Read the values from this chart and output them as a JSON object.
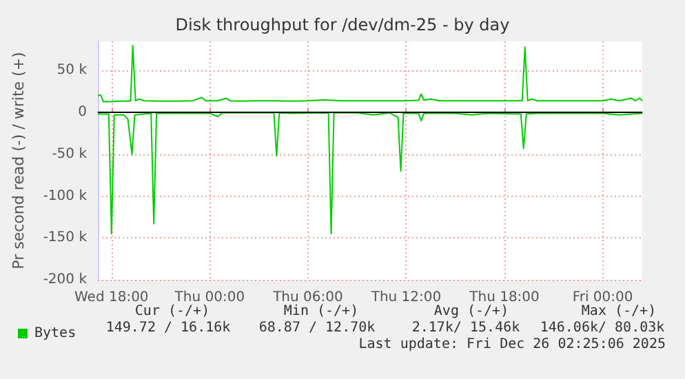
{
  "chart_data": {
    "type": "line",
    "title": "Disk throughput for /dev/dm-25 - by day",
    "ylabel": "Pr second read (-) / write (+)",
    "xlim": [
      "2025-12-24T17:10",
      "2025-12-26T02:25"
    ],
    "ylim": [
      -200000,
      85000
    ],
    "xticks": [
      {
        "value": "2025-12-24T18:00",
        "label": "Wed 18:00"
      },
      {
        "value": "2025-12-25T00:00",
        "label": "Thu 00:00"
      },
      {
        "value": "2025-12-25T06:00",
        "label": "Thu 06:00"
      },
      {
        "value": "2025-12-25T12:00",
        "label": "Thu 12:00"
      },
      {
        "value": "2025-12-25T18:00",
        "label": "Thu 18:00"
      },
      {
        "value": "2025-12-26T00:00",
        "label": "Fri 00:00"
      }
    ],
    "yticks": [
      {
        "value": -200000,
        "label": "-200 k"
      },
      {
        "value": -150000,
        "label": "-150 k"
      },
      {
        "value": -100000,
        "label": "-100 k"
      },
      {
        "value": -50000,
        "label": "-50 k"
      },
      0,
      {
        "value": 50000,
        "label": "50 k"
      }
    ],
    "grid": true,
    "legend": "bottom left",
    "marker": "none",
    "line_style": "solid",
    "ref_lines": [
      {
        "axis": "y",
        "value": 0,
        "color": "#000000"
      }
    ],
    "series": [
      {
        "name": "Bytes",
        "color": "#00cc00",
        "x": [
          "2025-12-24T17:10",
          "2025-12-24T17:20",
          "2025-12-24T17:30",
          "2025-12-24T18:00",
          "2025-12-24T18:30",
          "2025-12-24T19:00",
          "2025-12-24T19:10",
          "2025-12-24T19:18",
          "2025-12-24T19:28",
          "2025-12-24T19:40",
          "2025-12-24T20:00",
          "2025-12-24T21:00",
          "2025-12-24T22:00",
          "2025-12-24T23:00",
          "2025-12-24T23:30",
          "2025-12-24T23:45",
          "2025-12-25T00:30",
          "2025-12-25T01:00",
          "2025-12-25T01:15",
          "2025-12-25T02:00",
          "2025-12-25T03:00",
          "2025-12-25T04:00",
          "2025-12-25T05:00",
          "2025-12-25T06:00",
          "2025-12-25T07:00",
          "2025-12-25T08:00",
          "2025-12-25T09:00",
          "2025-12-25T10:00",
          "2025-12-25T11:00",
          "2025-12-25T12:00",
          "2025-12-25T12:45",
          "2025-12-25T12:55",
          "2025-12-25T13:05",
          "2025-12-25T13:30",
          "2025-12-25T14:00",
          "2025-12-25T15:00",
          "2025-12-25T16:00",
          "2025-12-25T17:00",
          "2025-12-25T18:00",
          "2025-12-25T19:05",
          "2025-12-25T19:15",
          "2025-12-25T19:25",
          "2025-12-25T19:40",
          "2025-12-25T20:00",
          "2025-12-25T21:00",
          "2025-12-25T22:00",
          "2025-12-25T23:00",
          "2025-12-26T00:00",
          "2025-12-26T00:30",
          "2025-12-26T01:00",
          "2025-12-26T01:45",
          "2025-12-26T02:00",
          "2025-12-26T02:15",
          "2025-12-26T02:25"
        ],
        "values": [
          20000,
          21000,
          13000,
          13000,
          13500,
          13500,
          14000,
          80000,
          14000,
          16000,
          14000,
          13500,
          13500,
          14000,
          18000,
          14000,
          14000,
          17000,
          14000,
          13500,
          14000,
          14000,
          13500,
          14000,
          15000,
          14000,
          14000,
          14000,
          14000,
          14000,
          14500,
          22000,
          14500,
          16000,
          14000,
          14000,
          14000,
          14000,
          14000,
          14000,
          78000,
          14000,
          16000,
          14000,
          14000,
          14000,
          14000,
          14000,
          16000,
          14000,
          17000,
          14000,
          17000,
          14000
        ]
      },
      {
        "color": "#00cc00",
        "x": [
          "2025-12-24T17:10",
          "2025-12-24T17:50",
          "2025-12-24T18:00",
          "2025-12-24T18:10",
          "2025-12-24T18:45",
          "2025-12-24T19:00",
          "2025-12-24T19:15",
          "2025-12-24T19:25",
          "2025-12-24T20:25",
          "2025-12-24T20:35",
          "2025-12-24T20:45",
          "2025-12-24T22:00",
          "2025-12-25T00:00",
          "2025-12-25T00:30",
          "2025-12-25T00:45",
          "2025-12-25T02:00",
          "2025-12-25T03:55",
          "2025-12-25T04:05",
          "2025-12-25T04:15",
          "2025-12-25T05:00",
          "2025-12-25T07:15",
          "2025-12-25T07:25",
          "2025-12-25T07:35",
          "2025-12-25T09:00",
          "2025-12-25T10:00",
          "2025-12-25T11:00",
          "2025-12-25T11:30",
          "2025-12-25T11:40",
          "2025-12-25T11:50",
          "2025-12-25T12:45",
          "2025-12-25T12:55",
          "2025-12-25T13:05",
          "2025-12-25T15:00",
          "2025-12-25T16:00",
          "2025-12-25T17:00",
          "2025-12-25T19:00",
          "2025-12-25T19:10",
          "2025-12-25T19:20",
          "2025-12-25T20:00",
          "2025-12-25T22:00",
          "2025-12-26T00:00",
          "2025-12-26T01:00",
          "2025-12-26T02:25"
        ],
        "values": [
          -2000,
          -2000,
          -145000,
          -3000,
          -3000,
          -8000,
          -50000,
          -3000,
          -1000,
          -133000,
          -1000,
          -1000,
          -1000,
          -5000,
          -500,
          -500,
          -500,
          -52000,
          -500,
          -1000,
          -500,
          -145000,
          -500,
          -500,
          -3000,
          -500,
          -6000,
          -70000,
          -1000,
          -1000,
          -10000,
          -1000,
          -1000,
          -3000,
          -1000,
          -2000,
          -43000,
          -2000,
          -1000,
          -1000,
          -1000,
          -3000,
          -1000
        ]
      }
    ],
    "annotations": [
      "Cur (-/+)",
      "Min (-/+)",
      "Avg (-/+)",
      "Max (-/+)",
      "149.72 / 16.16k",
      "68.87 / 12.70k",
      "2.17k/ 15.46k",
      "146.06k/ 80.03k",
      "Last update: Fri Dec 26 02:25:06 2025"
    ]
  }
}
